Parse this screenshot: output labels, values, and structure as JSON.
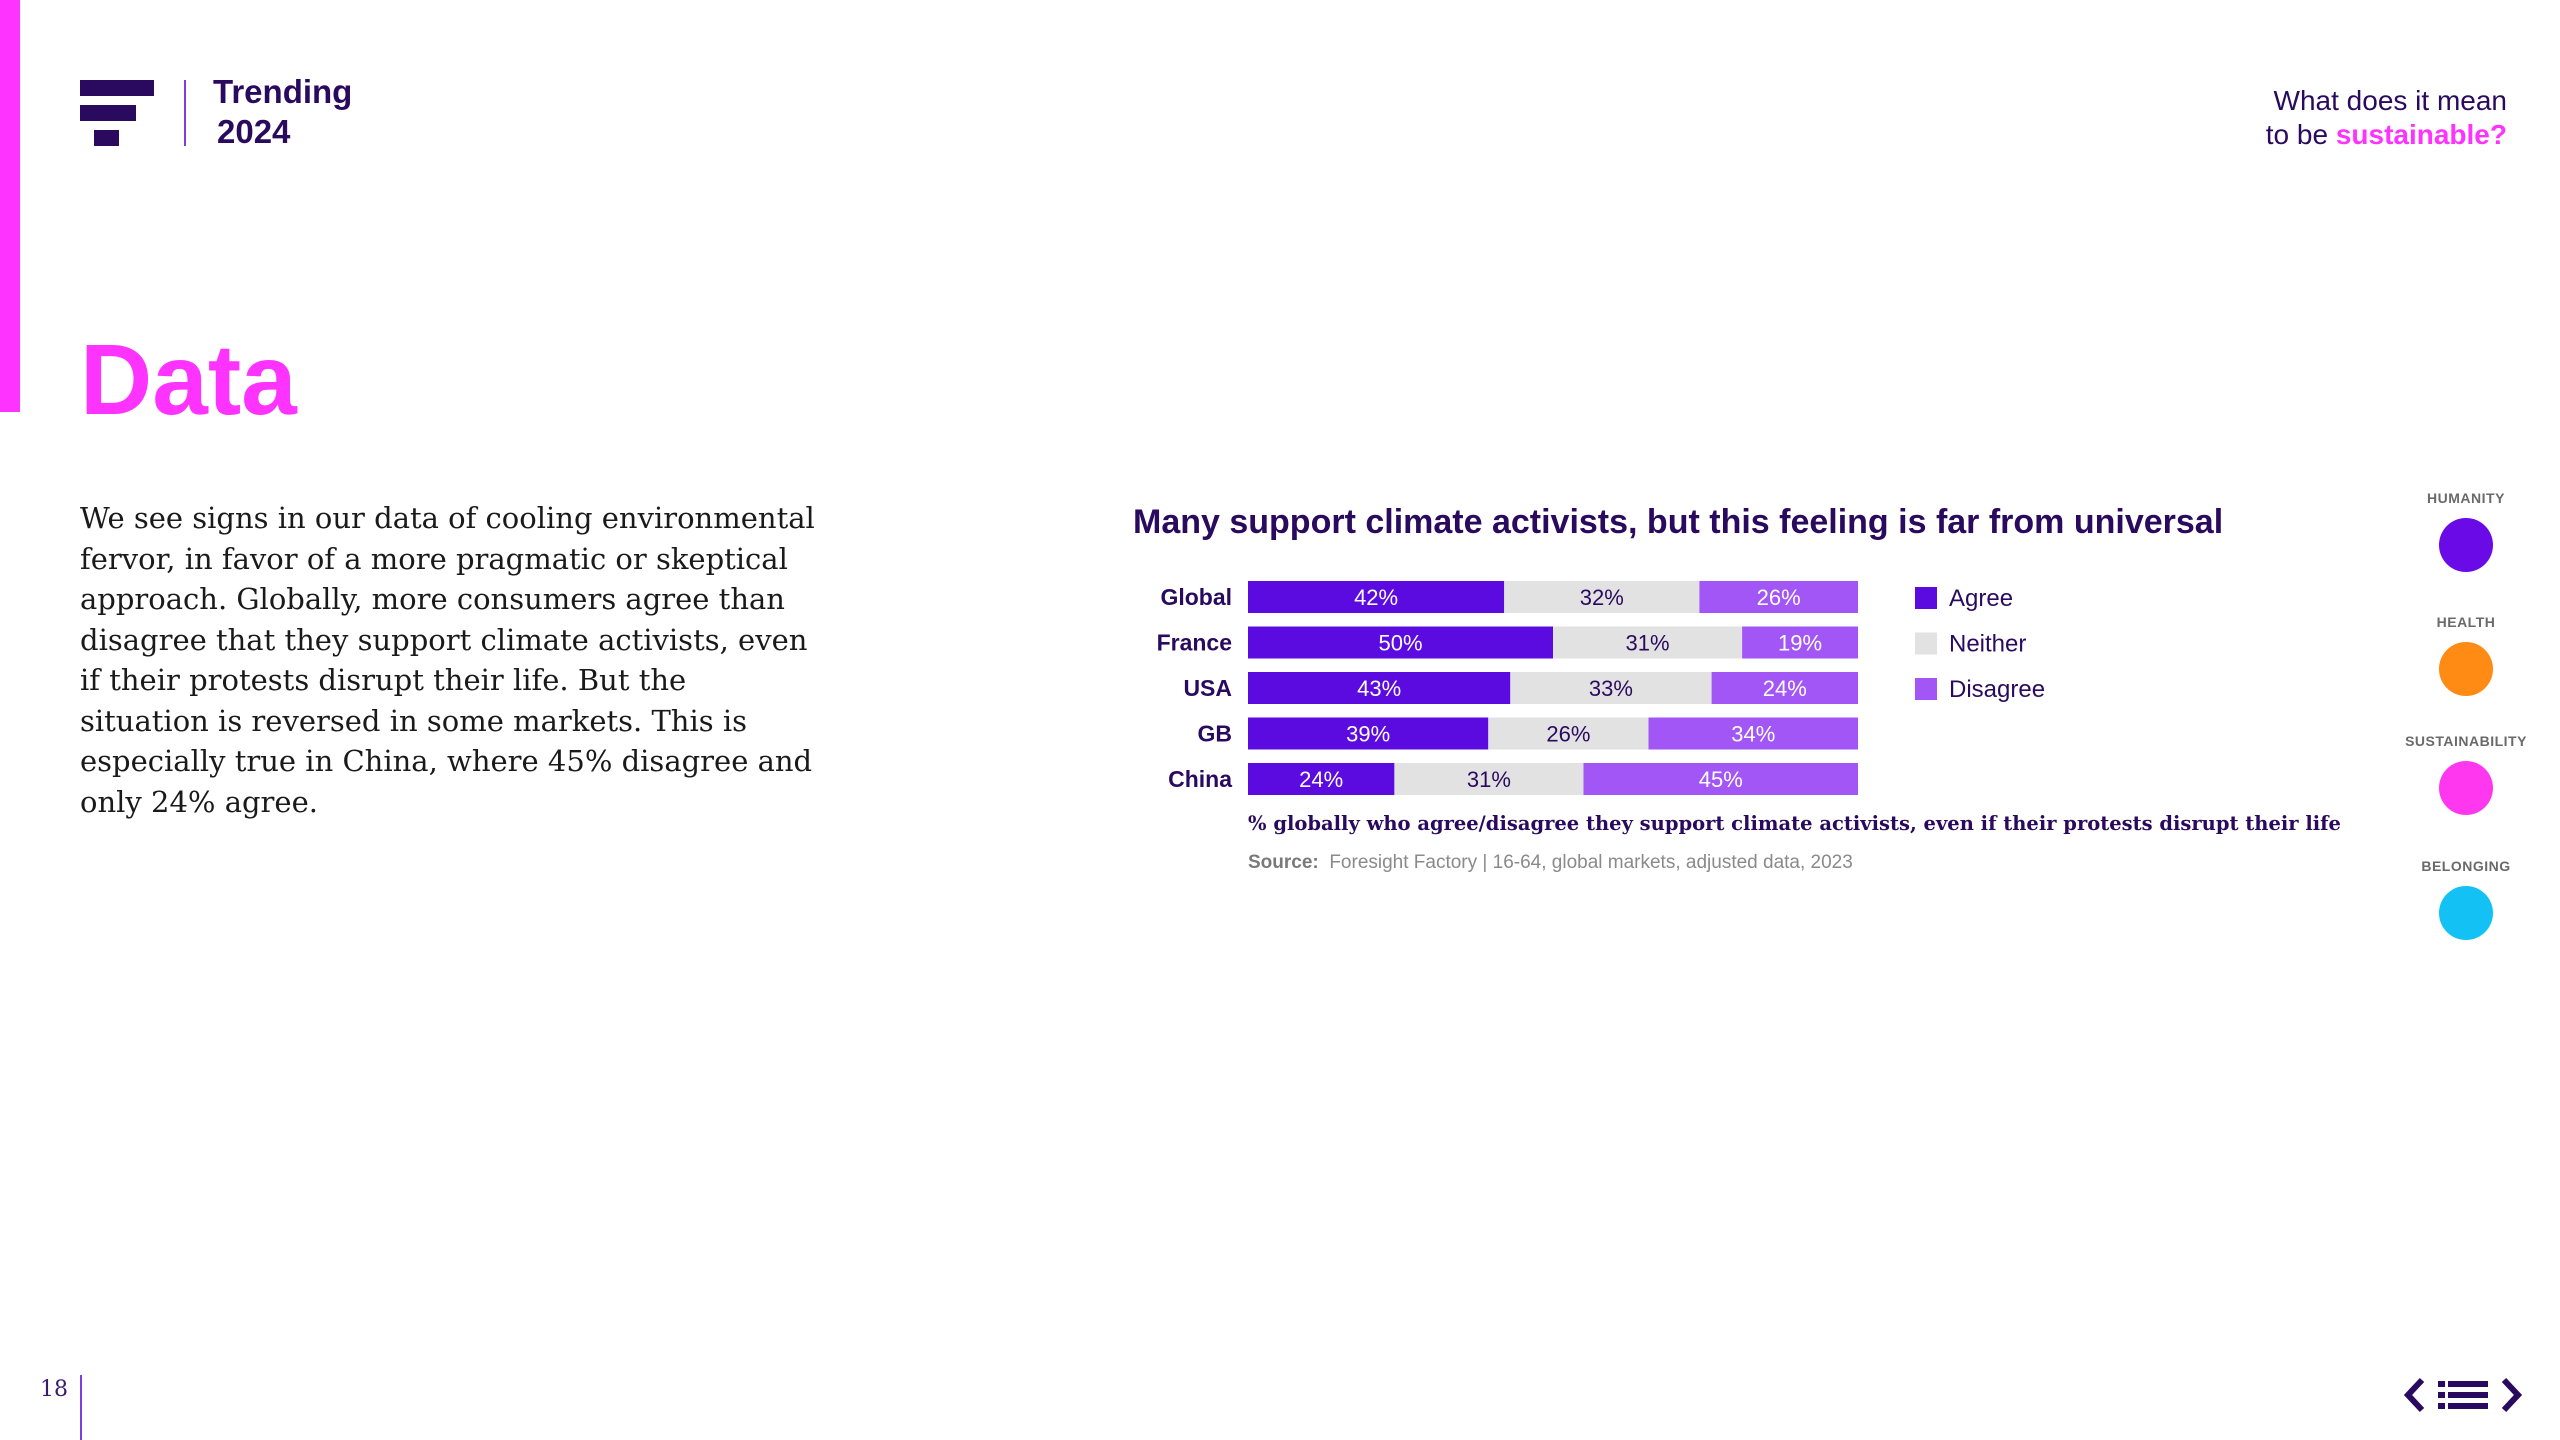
{
  "header": {
    "brand_line1": "Trending",
    "brand_line2": "2024",
    "question_prefix": "What does it mean",
    "question_line2_prefix": "to be ",
    "question_highlight": "sustainable?"
  },
  "section_title": "Data",
  "body_text": "We see signs in our data of cooling environmental fervor, in favor of a more pragmatic or skeptical approach. Globally, more consumers agree than disagree that they support climate activists, even if their protests disrupt their life. But the situation is reversed in some markets. This is especially true in China, where 45% disagree and only 24% agree.",
  "chart_note": "% globally who agree/disagree they support climate activists, even if their protests disrupt their life",
  "chart_source_label": "Source:",
  "chart_source_text": "Foresight Factory | 16-64, global markets, adjusted data, 2023",
  "chart_data": {
    "type": "bar",
    "orientation": "horizontal",
    "stacked": true,
    "title": "Many support climate activists, but this feeling is far from universal",
    "categories": [
      "Global",
      "France",
      "USA",
      "GB",
      "China"
    ],
    "series": [
      {
        "name": "Agree",
        "values": [
          42,
          50,
          43,
          39,
          24
        ],
        "color": "#5b0be0"
      },
      {
        "name": "Neither",
        "values": [
          32,
          31,
          33,
          26,
          31
        ],
        "color": "#e2e2e2"
      },
      {
        "name": "Disagree",
        "values": [
          26,
          19,
          24,
          34,
          45
        ],
        "color": "#a156f5"
      }
    ],
    "value_suffix": "%",
    "legend_position": "right"
  },
  "side_nav": [
    {
      "label": "HUMANITY",
      "color": "#6a0ae6"
    },
    {
      "label": "HEALTH",
      "color": "#ff8a14"
    },
    {
      "label": "SUSTAINABILITY",
      "color": "#ff38f0"
    },
    {
      "label": "BELONGING",
      "color": "#14c1f4"
    }
  ],
  "footer": {
    "page_number": "18",
    "nav_prev_icon": "chevron-left-icon",
    "nav_menu_icon": "menu-list-icon",
    "nav_next_icon": "chevron-right-icon"
  },
  "colors": {
    "accent_pink": "#ff33ff",
    "dark_purple": "#2a0a5e"
  }
}
